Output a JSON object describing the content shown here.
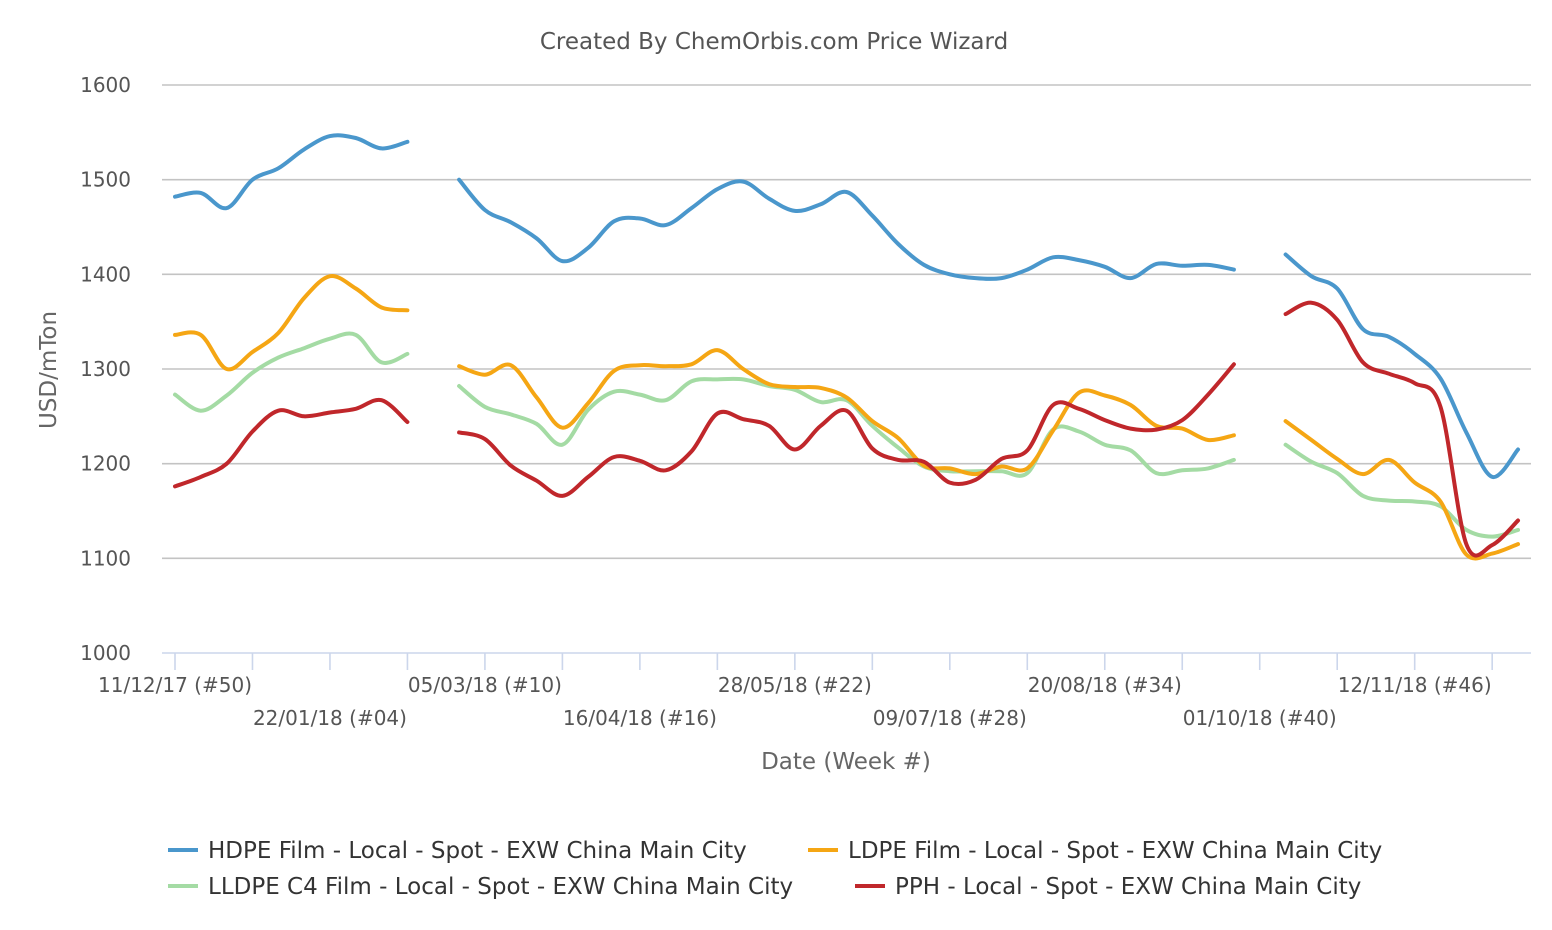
{
  "chart_data": {
    "type": "line",
    "title": "Created By ChemOrbis.com Price Wizard",
    "xlabel": "Date (Week #)",
    "ylabel": "USD/mTon",
    "ylim": [
      1000,
      1600
    ],
    "yticks": [
      1000,
      1100,
      1200,
      1300,
      1400,
      1500,
      1600
    ],
    "grid": true,
    "legend_position": "bottom",
    "x_week_count": 52,
    "x_tick_labels": [
      {
        "week": 0,
        "label": "11/12/17 (#50)"
      },
      {
        "week": 6,
        "label": "22/01/18 (#04)"
      },
      {
        "week": 12,
        "label": "05/03/18 (#10)"
      },
      {
        "week": 18,
        "label": "16/04/18 (#16)"
      },
      {
        "week": 24,
        "label": "28/05/18 (#22)"
      },
      {
        "week": 30,
        "label": "09/07/18 (#28)"
      },
      {
        "week": 36,
        "label": "20/08/18 (#34)"
      },
      {
        "week": 42,
        "label": "01/10/18 (#40)"
      },
      {
        "week": 48,
        "label": "12/11/18 (#46)"
      }
    ],
    "series": [
      {
        "name": "HDPE Film - Local - Spot - EXW China Main City",
        "color": "#4a97cc",
        "segments": [
          [
            [
              0,
              1482
            ],
            [
              1,
              1486
            ],
            [
              2,
              1470
            ],
            [
              3,
              1500
            ],
            [
              4,
              1512
            ],
            [
              5,
              1532
            ],
            [
              6,
              1546
            ],
            [
              7,
              1544
            ],
            [
              8,
              1533
            ],
            [
              9,
              1540
            ]
          ],
          [
            [
              11,
              1500
            ],
            [
              12,
              1468
            ],
            [
              13,
              1455
            ],
            [
              14,
              1438
            ],
            [
              15,
              1414
            ],
            [
              16,
              1428
            ],
            [
              17,
              1456
            ],
            [
              18,
              1459
            ],
            [
              19,
              1452
            ],
            [
              20,
              1470
            ],
            [
              21,
              1490
            ],
            [
              22,
              1498
            ],
            [
              23,
              1480
            ],
            [
              24,
              1467
            ],
            [
              25,
              1474
            ],
            [
              26,
              1487
            ],
            [
              27,
              1462
            ],
            [
              28,
              1432
            ],
            [
              29,
              1410
            ],
            [
              30,
              1400
            ],
            [
              31,
              1396
            ],
            [
              32,
              1396
            ],
            [
              33,
              1405
            ],
            [
              34,
              1418
            ],
            [
              35,
              1415
            ],
            [
              36,
              1408
            ],
            [
              37,
              1396
            ],
            [
              38,
              1411
            ],
            [
              39,
              1409
            ],
            [
              40,
              1410
            ],
            [
              41,
              1405
            ]
          ],
          [
            [
              43,
              1421
            ],
            [
              44,
              1398
            ],
            [
              45,
              1385
            ],
            [
              46,
              1342
            ],
            [
              47,
              1334
            ],
            [
              48,
              1316
            ],
            [
              49,
              1290
            ],
            [
              50,
              1233
            ],
            [
              51,
              1186
            ],
            [
              52,
              1215
            ]
          ]
        ]
      },
      {
        "name": "LDPE Film - Local - Spot - EXW China Main City",
        "color": "#f5a614",
        "segments": [
          [
            [
              0,
              1336
            ],
            [
              1,
              1336
            ],
            [
              2,
              1300
            ],
            [
              3,
              1318
            ],
            [
              4,
              1338
            ],
            [
              5,
              1375
            ],
            [
              6,
              1398
            ],
            [
              7,
              1385
            ],
            [
              8,
              1365
            ],
            [
              9,
              1362
            ]
          ],
          [
            [
              11,
              1303
            ],
            [
              12,
              1294
            ],
            [
              13,
              1304
            ],
            [
              14,
              1270
            ],
            [
              15,
              1238
            ],
            [
              16,
              1264
            ],
            [
              17,
              1298
            ],
            [
              18,
              1304
            ],
            [
              19,
              1303
            ],
            [
              20,
              1305
            ],
            [
              21,
              1320
            ],
            [
              22,
              1300
            ],
            [
              23,
              1284
            ],
            [
              24,
              1281
            ],
            [
              25,
              1280
            ],
            [
              26,
              1270
            ],
            [
              27,
              1245
            ],
            [
              28,
              1227
            ],
            [
              29,
              1198
            ],
            [
              30,
              1195
            ],
            [
              31,
              1189
            ],
            [
              32,
              1197
            ],
            [
              33,
              1195
            ],
            [
              34,
              1235
            ],
            [
              35,
              1275
            ],
            [
              36,
              1272
            ],
            [
              37,
              1262
            ],
            [
              38,
              1240
            ],
            [
              39,
              1237
            ],
            [
              40,
              1225
            ],
            [
              41,
              1230
            ]
          ],
          [
            [
              43,
              1245
            ],
            [
              44,
              1225
            ],
            [
              45,
              1205
            ],
            [
              46,
              1189
            ],
            [
              47,
              1204
            ],
            [
              48,
              1180
            ],
            [
              49,
              1160
            ],
            [
              50,
              1104
            ],
            [
              51,
              1105
            ],
            [
              52,
              1115
            ]
          ]
        ]
      },
      {
        "name": "LLDPE C4 Film - Local - Spot - EXW China Main City",
        "color": "#a4dba4",
        "segments": [
          [
            [
              0,
              1273
            ],
            [
              1,
              1256
            ],
            [
              2,
              1272
            ],
            [
              3,
              1296
            ],
            [
              4,
              1312
            ],
            [
              5,
              1322
            ],
            [
              6,
              1332
            ],
            [
              7,
              1336
            ],
            [
              8,
              1307
            ],
            [
              9,
              1316
            ]
          ],
          [
            [
              11,
              1282
            ],
            [
              12,
              1260
            ],
            [
              13,
              1252
            ],
            [
              14,
              1242
            ],
            [
              15,
              1220
            ],
            [
              16,
              1257
            ],
            [
              17,
              1276
            ],
            [
              18,
              1273
            ],
            [
              19,
              1267
            ],
            [
              20,
              1287
            ],
            [
              21,
              1289
            ],
            [
              22,
              1289
            ],
            [
              23,
              1282
            ],
            [
              24,
              1278
            ],
            [
              25,
              1265
            ],
            [
              26,
              1267
            ],
            [
              27,
              1240
            ],
            [
              28,
              1217
            ],
            [
              29,
              1197
            ],
            [
              30,
              1192
            ],
            [
              31,
              1192
            ],
            [
              32,
              1192
            ],
            [
              33,
              1190
            ],
            [
              34,
              1236
            ],
            [
              35,
              1234
            ],
            [
              36,
              1220
            ],
            [
              37,
              1214
            ],
            [
              38,
              1190
            ],
            [
              39,
              1193
            ],
            [
              40,
              1195
            ],
            [
              41,
              1204
            ]
          ],
          [
            [
              43,
              1220
            ],
            [
              44,
              1202
            ],
            [
              45,
              1190
            ],
            [
              46,
              1166
            ],
            [
              47,
              1161
            ],
            [
              48,
              1160
            ],
            [
              49,
              1155
            ],
            [
              50,
              1130
            ],
            [
              51,
              1123
            ],
            [
              52,
              1130
            ]
          ]
        ]
      },
      {
        "name": "PPH - Local - Spot - EXW China Main City",
        "color": "#c0272b",
        "segments": [
          [
            [
              0,
              1176
            ],
            [
              1,
              1186
            ],
            [
              2,
              1200
            ],
            [
              3,
              1234
            ],
            [
              4,
              1256
            ],
            [
              5,
              1250
            ],
            [
              6,
              1254
            ],
            [
              7,
              1258
            ],
            [
              8,
              1267
            ],
            [
              9,
              1244
            ]
          ],
          [
            [
              11,
              1233
            ],
            [
              12,
              1226
            ],
            [
              13,
              1198
            ],
            [
              14,
              1182
            ],
            [
              15,
              1166
            ],
            [
              16,
              1186
            ],
            [
              17,
              1207
            ],
            [
              18,
              1203
            ],
            [
              19,
              1193
            ],
            [
              20,
              1213
            ],
            [
              21,
              1253
            ],
            [
              22,
              1247
            ],
            [
              23,
              1240
            ],
            [
              24,
              1215
            ],
            [
              25,
              1240
            ],
            [
              26,
              1256
            ],
            [
              27,
              1216
            ],
            [
              28,
              1204
            ],
            [
              29,
              1202
            ],
            [
              30,
              1180
            ],
            [
              31,
              1183
            ],
            [
              32,
              1205
            ],
            [
              33,
              1214
            ],
            [
              34,
              1262
            ],
            [
              35,
              1258
            ],
            [
              36,
              1246
            ],
            [
              37,
              1237
            ],
            [
              38,
              1236
            ],
            [
              39,
              1246
            ],
            [
              40,
              1273
            ],
            [
              41,
              1305
            ]
          ],
          [
            [
              43,
              1358
            ],
            [
              44,
              1370
            ],
            [
              45,
              1352
            ],
            [
              46,
              1307
            ],
            [
              47,
              1295
            ],
            [
              48,
              1285
            ],
            [
              49,
              1260
            ],
            [
              50,
              1115
            ],
            [
              51,
              1114
            ],
            [
              52,
              1140
            ]
          ]
        ]
      }
    ]
  }
}
